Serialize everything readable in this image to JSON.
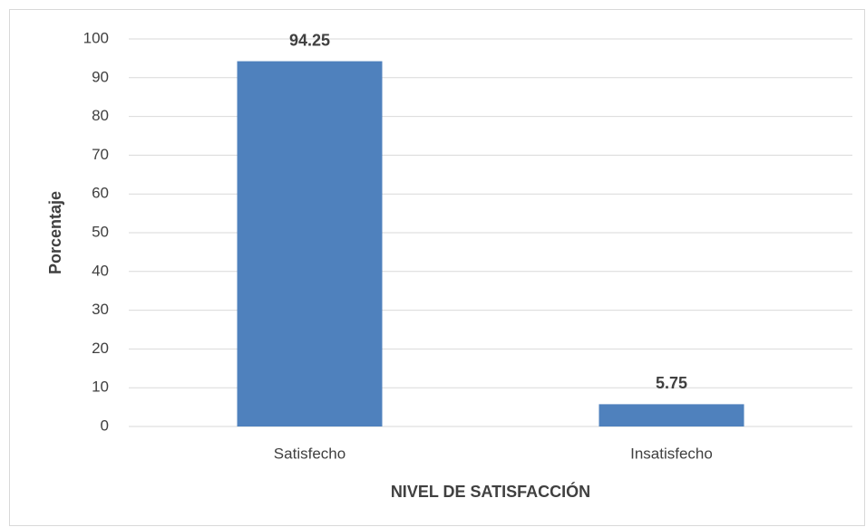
{
  "chart_data": {
    "type": "bar",
    "categories": [
      "Satisfecho",
      "Insatisfecho"
    ],
    "values": [
      94.25,
      5.75
    ],
    "color": "#4f81bd",
    "ylabel": "Porcentaje",
    "xlabel": "NIVEL DE SATISFACCIÓN",
    "ylim": [
      0,
      100
    ],
    "yticks": [
      0,
      10,
      20,
      30,
      40,
      50,
      60,
      70,
      80,
      90,
      100
    ],
    "grid": true,
    "data_labels": true
  }
}
